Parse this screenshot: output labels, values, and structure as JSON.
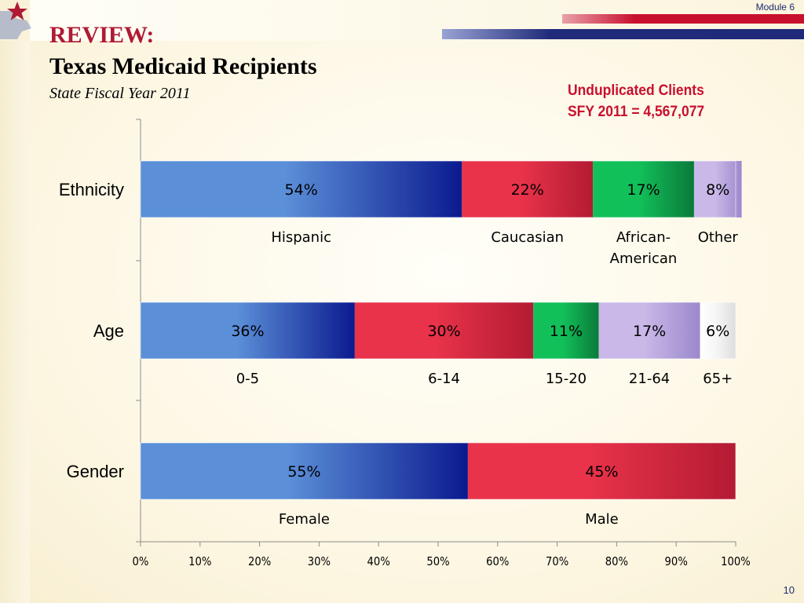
{
  "header": {
    "module": "Module 6",
    "review": "REVIEW:",
    "title": "Texas Medicaid Recipients",
    "subtitle": "State Fiscal Year 2011"
  },
  "note": {
    "line1": "Unduplicated Clients",
    "line2": "SFY 2011 = 4,567,077"
  },
  "page_number": "10",
  "colors": {
    "blue": "#5b8fd8",
    "blue_dark": "#0b1a8f",
    "red": "#e8334a",
    "red_dark": "#b31b33",
    "green": "#12c05a",
    "green_dark": "#0a7a3a",
    "lavender": "#c9b8e8",
    "lavender_dark": "#9c88cc",
    "white_seg": "#f4f4f4"
  },
  "chart_data": {
    "type": "bar",
    "orientation": "horizontal",
    "stacked": "100%",
    "categories": [
      "Ethnicity",
      "Age",
      "Gender"
    ],
    "xlim": [
      0,
      100
    ],
    "xticks": [
      "0%",
      "10%",
      "20%",
      "30%",
      "40%",
      "50%",
      "60%",
      "70%",
      "80%",
      "90%",
      "100%"
    ],
    "grid": false,
    "rows": [
      {
        "category": "Ethnicity",
        "segments": [
          {
            "label": "Hispanic",
            "value": 54,
            "data_label": "54%",
            "color": "blue"
          },
          {
            "label": "Caucasian",
            "value": 22,
            "data_label": "22%",
            "color": "red"
          },
          {
            "label": "African-American",
            "label_lines": [
              "African-",
              "American"
            ],
            "value": 17,
            "data_label": "17%",
            "color": "green"
          },
          {
            "label": "Other",
            "value": 8,
            "data_label": "8%",
            "color": "lavender"
          }
        ]
      },
      {
        "category": "Age",
        "segments": [
          {
            "label": "0-5",
            "value": 36,
            "data_label": "36%",
            "color": "blue"
          },
          {
            "label": "6-14",
            "value": 30,
            "data_label": "30%",
            "color": "red"
          },
          {
            "label": "15-20",
            "value": 11,
            "data_label": "11%",
            "color": "green"
          },
          {
            "label": "21-64",
            "value": 17,
            "data_label": "17%",
            "color": "lavender"
          },
          {
            "label": "65+",
            "value": 6,
            "data_label": "6%",
            "color": "white_seg"
          }
        ]
      },
      {
        "category": "Gender",
        "segments": [
          {
            "label": "Female",
            "value": 55,
            "data_label": "55%",
            "color": "blue"
          },
          {
            "label": "Male",
            "value": 45,
            "data_label": "45%",
            "color": "red"
          }
        ]
      }
    ]
  }
}
